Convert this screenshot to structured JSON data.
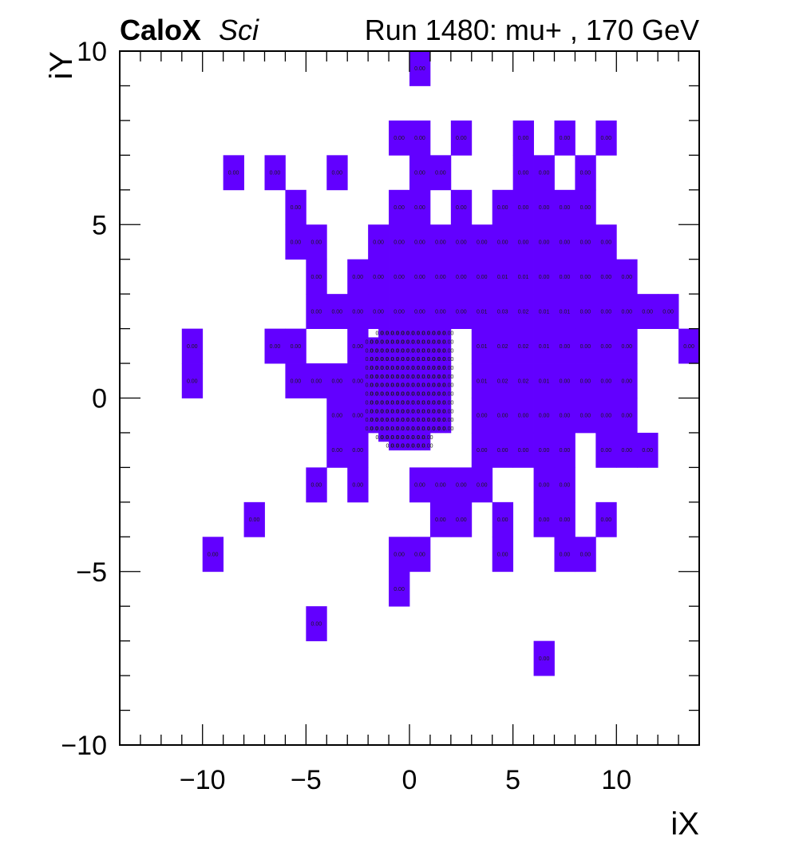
{
  "header": {
    "brand": "CaloX",
    "brand_suffix": "Sci",
    "run_info": "Run 1480: mu+ , 170 GeV"
  },
  "chart_data": {
    "type": "heatmap",
    "xlabel": "iX",
    "ylabel": "iY",
    "xlim": [
      -14,
      14
    ],
    "ylim": [
      -10,
      10
    ],
    "x_ticks": [
      -10,
      -5,
      0,
      5,
      10
    ],
    "y_ticks": [
      -10,
      -5,
      0,
      5,
      10
    ],
    "x_tick_labels": [
      "−10",
      "−5",
      "0",
      "5",
      "10"
    ],
    "y_tick_labels": [
      "−10",
      "−5",
      "0",
      "5",
      "10"
    ],
    "fill_color": "#6200ff",
    "cells": [
      {
        "x": 0,
        "y": 9,
        "w": 1,
        "h": 1,
        "label": "0.00"
      },
      {
        "x": -1,
        "y": 7,
        "w": 1,
        "h": 1,
        "label": "0.00"
      },
      {
        "x": 0,
        "y": 7,
        "w": 1,
        "h": 1,
        "label": "0.00"
      },
      {
        "x": 2,
        "y": 7,
        "w": 1,
        "h": 1,
        "label": "0.00"
      },
      {
        "x": 5,
        "y": 7,
        "w": 1,
        "h": 1,
        "label": "0.00"
      },
      {
        "x": 7,
        "y": 7,
        "w": 1,
        "h": 1,
        "label": "0.00"
      },
      {
        "x": 9,
        "y": 7,
        "w": 1,
        "h": 1,
        "label": "0.00"
      },
      {
        "x": -9,
        "y": 6,
        "w": 1,
        "h": 1,
        "label": "0.00"
      },
      {
        "x": -7,
        "y": 6,
        "w": 1,
        "h": 1,
        "label": "0.00"
      },
      {
        "x": -4,
        "y": 6,
        "w": 1,
        "h": 1,
        "label": "0.00"
      },
      {
        "x": 0,
        "y": 6,
        "w": 1,
        "h": 1,
        "label": "0.00"
      },
      {
        "x": 1,
        "y": 6,
        "w": 1,
        "h": 1,
        "label": "0.00"
      },
      {
        "x": 5,
        "y": 6,
        "w": 1,
        "h": 1,
        "label": "0.00"
      },
      {
        "x": 6,
        "y": 6,
        "w": 1,
        "h": 1,
        "label": "0.00"
      },
      {
        "x": 8,
        "y": 6,
        "w": 1,
        "h": 1,
        "label": "0.00"
      },
      {
        "x": -6,
        "y": 5,
        "w": 1,
        "h": 1,
        "label": "0.00"
      },
      {
        "x": -1,
        "y": 5,
        "w": 1,
        "h": 1,
        "label": "0.00"
      },
      {
        "x": 0,
        "y": 5,
        "w": 1,
        "h": 1,
        "label": "0.00"
      },
      {
        "x": 2,
        "y": 5,
        "w": 1,
        "h": 1,
        "label": "0.00"
      },
      {
        "x": 4,
        "y": 5,
        "w": 1,
        "h": 1,
        "label": "0.00"
      },
      {
        "x": 5,
        "y": 5,
        "w": 1,
        "h": 1,
        "label": "0.00"
      },
      {
        "x": 6,
        "y": 5,
        "w": 1,
        "h": 1,
        "label": "0.00"
      },
      {
        "x": 7,
        "y": 5,
        "w": 1,
        "h": 1,
        "label": "0.00"
      },
      {
        "x": 8,
        "y": 5,
        "w": 1,
        "h": 1,
        "label": "0.00"
      },
      {
        "x": -6,
        "y": 4,
        "w": 1,
        "h": 1,
        "label": "0.00"
      },
      {
        "x": -5,
        "y": 4,
        "w": 1,
        "h": 1,
        "label": "0.00"
      },
      {
        "x": -2,
        "y": 4,
        "w": 1,
        "h": 1,
        "label": "0.00"
      },
      {
        "x": -1,
        "y": 4,
        "w": 1,
        "h": 1,
        "label": "0.00"
      },
      {
        "x": 0,
        "y": 4,
        "w": 1,
        "h": 1,
        "label": "0.00"
      },
      {
        "x": 1,
        "y": 4,
        "w": 1,
        "h": 1,
        "label": "0.00"
      },
      {
        "x": 2,
        "y": 4,
        "w": 1,
        "h": 1,
        "label": "0.00"
      },
      {
        "x": 3,
        "y": 4,
        "w": 1,
        "h": 1,
        "label": "0.00"
      },
      {
        "x": 4,
        "y": 4,
        "w": 1,
        "h": 1,
        "label": "0.00"
      },
      {
        "x": 5,
        "y": 4,
        "w": 1,
        "h": 1,
        "label": "0.00"
      },
      {
        "x": 6,
        "y": 4,
        "w": 1,
        "h": 1,
        "label": "0.00"
      },
      {
        "x": 7,
        "y": 4,
        "w": 1,
        "h": 1,
        "label": "0.00"
      },
      {
        "x": 8,
        "y": 4,
        "w": 1,
        "h": 1,
        "label": "0.00"
      },
      {
        "x": 9,
        "y": 4,
        "w": 1,
        "h": 1,
        "label": "0.00"
      },
      {
        "x": -5,
        "y": 3,
        "w": 1,
        "h": 1,
        "label": "0.00"
      },
      {
        "x": -3,
        "y": 3,
        "w": 1,
        "h": 1,
        "label": "0.00"
      },
      {
        "x": -2,
        "y": 3,
        "w": 1,
        "h": 1,
        "label": "0.00"
      },
      {
        "x": -1,
        "y": 3,
        "w": 1,
        "h": 1,
        "label": "0.00"
      },
      {
        "x": 0,
        "y": 3,
        "w": 1,
        "h": 1,
        "label": "0.00"
      },
      {
        "x": 1,
        "y": 3,
        "w": 1,
        "h": 1,
        "label": "0.00"
      },
      {
        "x": 2,
        "y": 3,
        "w": 1,
        "h": 1,
        "label": "0.00"
      },
      {
        "x": 3,
        "y": 3,
        "w": 1,
        "h": 1,
        "label": "0.00"
      },
      {
        "x": 4,
        "y": 3,
        "w": 1,
        "h": 1,
        "label": "0.01"
      },
      {
        "x": 5,
        "y": 3,
        "w": 1,
        "h": 1,
        "label": "0.01"
      },
      {
        "x": 6,
        "y": 3,
        "w": 1,
        "h": 1,
        "label": "0.00"
      },
      {
        "x": 7,
        "y": 3,
        "w": 1,
        "h": 1,
        "label": "0.00"
      },
      {
        "x": 8,
        "y": 3,
        "w": 1,
        "h": 1,
        "label": "0.00"
      },
      {
        "x": 9,
        "y": 3,
        "w": 1,
        "h": 1,
        "label": "0.00"
      },
      {
        "x": 10,
        "y": 3,
        "w": 1,
        "h": 1,
        "label": "0.00"
      },
      {
        "x": -5,
        "y": 2,
        "w": 1,
        "h": 1,
        "label": "0.00"
      },
      {
        "x": -4,
        "y": 2,
        "w": 1,
        "h": 1,
        "label": "0.00"
      },
      {
        "x": -3,
        "y": 2,
        "w": 1,
        "h": 1,
        "label": "0.00"
      },
      {
        "x": -2,
        "y": 2,
        "w": 1,
        "h": 1,
        "label": "0.00"
      },
      {
        "x": -1,
        "y": 2,
        "w": 1,
        "h": 1,
        "label": "0.00"
      },
      {
        "x": 0,
        "y": 2,
        "w": 1,
        "h": 1,
        "label": "0.00"
      },
      {
        "x": 1,
        "y": 2,
        "w": 1,
        "h": 1,
        "label": "0.00"
      },
      {
        "x": 2,
        "y": 2,
        "w": 1,
        "h": 1,
        "label": "0.00"
      },
      {
        "x": 3,
        "y": 2,
        "w": 1,
        "h": 1,
        "label": "0.01"
      },
      {
        "x": 4,
        "y": 2,
        "w": 1,
        "h": 1,
        "label": "0.03"
      },
      {
        "x": 5,
        "y": 2,
        "w": 1,
        "h": 1,
        "label": "0.02"
      },
      {
        "x": 6,
        "y": 2,
        "w": 1,
        "h": 1,
        "label": "0.01"
      },
      {
        "x": 7,
        "y": 2,
        "w": 1,
        "h": 1,
        "label": "0.01"
      },
      {
        "x": 8,
        "y": 2,
        "w": 1,
        "h": 1,
        "label": "0.00"
      },
      {
        "x": 9,
        "y": 2,
        "w": 1,
        "h": 1,
        "label": "0.00"
      },
      {
        "x": 10,
        "y": 2,
        "w": 1,
        "h": 1,
        "label": "0.00"
      },
      {
        "x": 11,
        "y": 2,
        "w": 1,
        "h": 1,
        "label": "0.00"
      },
      {
        "x": 12,
        "y": 2,
        "w": 1,
        "h": 1,
        "label": "0.00"
      },
      {
        "x": -11,
        "y": 1,
        "w": 1,
        "h": 1,
        "label": "0.00"
      },
      {
        "x": -7,
        "y": 1,
        "w": 1,
        "h": 1,
        "label": "0.00"
      },
      {
        "x": -6,
        "y": 1,
        "w": 1,
        "h": 1,
        "label": "0.00"
      },
      {
        "x": -3,
        "y": 1,
        "w": 1,
        "h": 1,
        "label": "0.00"
      },
      {
        "x": 3,
        "y": 1,
        "w": 1,
        "h": 1,
        "label": "0.01"
      },
      {
        "x": 4,
        "y": 1,
        "w": 1,
        "h": 1,
        "label": "0.02"
      },
      {
        "x": 5,
        "y": 1,
        "w": 1,
        "h": 1,
        "label": "0.02"
      },
      {
        "x": 6,
        "y": 1,
        "w": 1,
        "h": 1,
        "label": "0.01"
      },
      {
        "x": 7,
        "y": 1,
        "w": 1,
        "h": 1,
        "label": "0.00"
      },
      {
        "x": 8,
        "y": 1,
        "w": 1,
        "h": 1,
        "label": "0.00"
      },
      {
        "x": 9,
        "y": 1,
        "w": 1,
        "h": 1,
        "label": "0.00"
      },
      {
        "x": 10,
        "y": 1,
        "w": 1,
        "h": 1,
        "label": "0.00"
      },
      {
        "x": 13,
        "y": 1,
        "w": 1,
        "h": 1,
        "label": "0.00"
      },
      {
        "x": -11,
        "y": 0,
        "w": 1,
        "h": 1,
        "label": "0.00"
      },
      {
        "x": -6,
        "y": 0,
        "w": 1,
        "h": 1,
        "label": "0.00"
      },
      {
        "x": -5,
        "y": 0,
        "w": 1,
        "h": 1,
        "label": "0.00"
      },
      {
        "x": -4,
        "y": 0,
        "w": 1,
        "h": 1,
        "label": "0.00"
      },
      {
        "x": -3,
        "y": 0,
        "w": 1,
        "h": 1,
        "label": "0.00"
      },
      {
        "x": 3,
        "y": 0,
        "w": 1,
        "h": 1,
        "label": "0.01"
      },
      {
        "x": 4,
        "y": 0,
        "w": 1,
        "h": 1,
        "label": "0.02"
      },
      {
        "x": 5,
        "y": 0,
        "w": 1,
        "h": 1,
        "label": "0.02"
      },
      {
        "x": 6,
        "y": 0,
        "w": 1,
        "h": 1,
        "label": "0.01"
      },
      {
        "x": 7,
        "y": 0,
        "w": 1,
        "h": 1,
        "label": "0.00"
      },
      {
        "x": 8,
        "y": 0,
        "w": 1,
        "h": 1,
        "label": "0.00"
      },
      {
        "x": 9,
        "y": 0,
        "w": 1,
        "h": 1,
        "label": "0.00"
      },
      {
        "x": 10,
        "y": 0,
        "w": 1,
        "h": 1,
        "label": "0.00"
      },
      {
        "x": -4,
        "y": -1,
        "w": 1,
        "h": 1,
        "label": "0.00"
      },
      {
        "x": -3,
        "y": -1,
        "w": 1,
        "h": 1,
        "label": "0.00"
      },
      {
        "x": 3,
        "y": -1,
        "w": 1,
        "h": 1,
        "label": "0.00"
      },
      {
        "x": 4,
        "y": -1,
        "w": 1,
        "h": 1,
        "label": "0.00"
      },
      {
        "x": 5,
        "y": -1,
        "w": 1,
        "h": 1,
        "label": "0.00"
      },
      {
        "x": 6,
        "y": -1,
        "w": 1,
        "h": 1,
        "label": "0.00"
      },
      {
        "x": 7,
        "y": -1,
        "w": 1,
        "h": 1,
        "label": "0.00"
      },
      {
        "x": 8,
        "y": -1,
        "w": 1,
        "h": 1,
        "label": "0.00"
      },
      {
        "x": 9,
        "y": -1,
        "w": 1,
        "h": 1,
        "label": "0.00"
      },
      {
        "x": 10,
        "y": -1,
        "w": 1,
        "h": 1,
        "label": "0.00"
      },
      {
        "x": -4,
        "y": -2,
        "w": 1,
        "h": 1,
        "label": "0.00"
      },
      {
        "x": -3,
        "y": -2,
        "w": 1,
        "h": 1,
        "label": "0.00"
      },
      {
        "x": 3,
        "y": -2,
        "w": 1,
        "h": 1,
        "label": "0.00"
      },
      {
        "x": 4,
        "y": -2,
        "w": 1,
        "h": 1,
        "label": "0.00"
      },
      {
        "x": 5,
        "y": -2,
        "w": 1,
        "h": 1,
        "label": "0.00"
      },
      {
        "x": 6,
        "y": -2,
        "w": 1,
        "h": 1,
        "label": "0.00"
      },
      {
        "x": 7,
        "y": -2,
        "w": 1,
        "h": 1,
        "label": "0.00"
      },
      {
        "x": 9,
        "y": -2,
        "w": 1,
        "h": 1,
        "label": "0.00"
      },
      {
        "x": 10,
        "y": -2,
        "w": 1,
        "h": 1,
        "label": "0.00"
      },
      {
        "x": 11,
        "y": -2,
        "w": 1,
        "h": 1,
        "label": "0.00"
      },
      {
        "x": -5,
        "y": -3,
        "w": 1,
        "h": 1,
        "label": "0.00"
      },
      {
        "x": -3,
        "y": -3,
        "w": 1,
        "h": 1,
        "label": "0.00"
      },
      {
        "x": 0,
        "y": -3,
        "w": 1,
        "h": 1,
        "label": "0.00"
      },
      {
        "x": 1,
        "y": -3,
        "w": 1,
        "h": 1,
        "label": "0.00"
      },
      {
        "x": 2,
        "y": -3,
        "w": 1,
        "h": 1,
        "label": "0.00"
      },
      {
        "x": 3,
        "y": -3,
        "w": 1,
        "h": 1,
        "label": "0.00"
      },
      {
        "x": 6,
        "y": -3,
        "w": 1,
        "h": 1,
        "label": "0.00"
      },
      {
        "x": 7,
        "y": -3,
        "w": 1,
        "h": 1,
        "label": "0.00"
      },
      {
        "x": -8,
        "y": -4,
        "w": 1,
        "h": 1,
        "label": "0.00"
      },
      {
        "x": 1,
        "y": -4,
        "w": 1,
        "h": 1,
        "label": "0.00"
      },
      {
        "x": 2,
        "y": -4,
        "w": 1,
        "h": 1,
        "label": "0.00"
      },
      {
        "x": 4,
        "y": -4,
        "w": 1,
        "h": 1,
        "label": "0.00"
      },
      {
        "x": 6,
        "y": -4,
        "w": 1,
        "h": 1,
        "label": "0.00"
      },
      {
        "x": 7,
        "y": -4,
        "w": 1,
        "h": 1,
        "label": "0.00"
      },
      {
        "x": 9,
        "y": -4,
        "w": 1,
        "h": 1,
        "label": "0.00"
      },
      {
        "x": -10,
        "y": -5,
        "w": 1,
        "h": 1,
        "label": "0.00"
      },
      {
        "x": -1,
        "y": -5,
        "w": 1,
        "h": 1,
        "label": "0.00"
      },
      {
        "x": 0,
        "y": -5,
        "w": 1,
        "h": 1,
        "label": "0.00"
      },
      {
        "x": 4,
        "y": -5,
        "w": 1,
        "h": 1,
        "label": "0.00"
      },
      {
        "x": 7,
        "y": -5,
        "w": 1,
        "h": 1,
        "label": "0.00"
      },
      {
        "x": 8,
        "y": -5,
        "w": 1,
        "h": 1,
        "label": "0.00"
      },
      {
        "x": -1,
        "y": -6,
        "w": 1,
        "h": 1,
        "label": "0.00"
      },
      {
        "x": -5,
        "y": -7,
        "w": 1,
        "h": 1,
        "label": "0.00"
      },
      {
        "x": 6,
        "y": -8,
        "w": 1,
        "h": 1,
        "label": "0.00"
      }
    ],
    "fine_region": {
      "x": [
        -2,
        2
      ],
      "y": [
        -1.5,
        2
      ],
      "cell_size": 0.25,
      "missing": [
        [
          -2,
          1.75
        ],
        [
          -1.75,
          1.75
        ],
        [
          -2,
          -1.25
        ],
        [
          -1.75,
          -1.25
        ],
        [
          -2,
          -1.5
        ],
        [
          -1.75,
          -1.5
        ],
        [
          -1.5,
          -1.5
        ],
        [
          -1.25,
          -1.5
        ],
        [
          1,
          -1.25
        ],
        [
          1.25,
          -1.25
        ],
        [
          1.5,
          -1.25
        ],
        [
          1.75,
          -1.25
        ],
        [
          1,
          -1.5
        ],
        [
          1.25,
          -1.5
        ],
        [
          1.5,
          -1.5
        ],
        [
          1.75,
          -1.5
        ]
      ],
      "label": "0.00"
    }
  }
}
